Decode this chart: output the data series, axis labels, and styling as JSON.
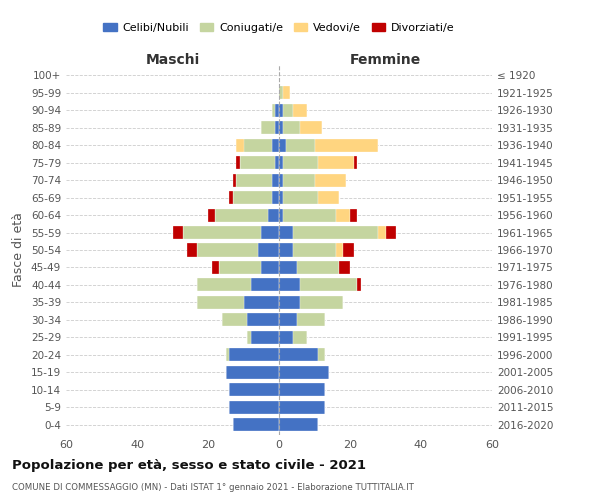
{
  "age_groups": [
    "0-4",
    "5-9",
    "10-14",
    "15-19",
    "20-24",
    "25-29",
    "30-34",
    "35-39",
    "40-44",
    "45-49",
    "50-54",
    "55-59",
    "60-64",
    "65-69",
    "70-74",
    "75-79",
    "80-84",
    "85-89",
    "90-94",
    "95-99",
    "100+"
  ],
  "birth_years": [
    "2016-2020",
    "2011-2015",
    "2006-2010",
    "2001-2005",
    "1996-2000",
    "1991-1995",
    "1986-1990",
    "1981-1985",
    "1976-1980",
    "1971-1975",
    "1966-1970",
    "1961-1965",
    "1956-1960",
    "1951-1955",
    "1946-1950",
    "1941-1945",
    "1936-1940",
    "1931-1935",
    "1926-1930",
    "1921-1925",
    "≤ 1920"
  ],
  "colors": {
    "celibi": "#4472C4",
    "coniugati": "#C5D5A0",
    "vedovi": "#FFD580",
    "divorziati": "#C00000"
  },
  "males": {
    "celibi": [
      13,
      14,
      14,
      15,
      14,
      8,
      9,
      10,
      8,
      5,
      6,
      5,
      3,
      2,
      2,
      1,
      2,
      1,
      1,
      0,
      0
    ],
    "coniugati": [
      0,
      0,
      0,
      0,
      1,
      1,
      7,
      13,
      15,
      12,
      17,
      22,
      15,
      11,
      10,
      10,
      8,
      4,
      1,
      0,
      0
    ],
    "vedovi": [
      0,
      0,
      0,
      0,
      0,
      0,
      0,
      0,
      0,
      0,
      0,
      0,
      0,
      0,
      0,
      0,
      2,
      0,
      0,
      0,
      0
    ],
    "divorziati": [
      0,
      0,
      0,
      0,
      0,
      0,
      0,
      0,
      0,
      2,
      3,
      3,
      2,
      1,
      1,
      1,
      0,
      0,
      0,
      0,
      0
    ]
  },
  "females": {
    "celibi": [
      11,
      13,
      13,
      14,
      11,
      4,
      5,
      6,
      6,
      5,
      4,
      4,
      1,
      1,
      1,
      1,
      2,
      1,
      1,
      0,
      0
    ],
    "coniugati": [
      0,
      0,
      0,
      0,
      2,
      4,
      8,
      12,
      16,
      12,
      12,
      24,
      15,
      10,
      9,
      10,
      8,
      5,
      3,
      1,
      0
    ],
    "vedovi": [
      0,
      0,
      0,
      0,
      0,
      0,
      0,
      0,
      0,
      0,
      2,
      2,
      4,
      6,
      9,
      10,
      18,
      6,
      4,
      2,
      0
    ],
    "divorziati": [
      0,
      0,
      0,
      0,
      0,
      0,
      0,
      0,
      1,
      3,
      3,
      3,
      2,
      0,
      0,
      1,
      0,
      0,
      0,
      0,
      0
    ]
  },
  "title": "Popolazione per età, sesso e stato civile - 2021",
  "subtitle": "COMUNE DI COMMESSAGGIO (MN) - Dati ISTAT 1° gennaio 2021 - Elaborazione TUTTITALIA.IT",
  "xlabel_left": "Maschi",
  "xlabel_right": "Femmine",
  "ylabel": "Fasce di età",
  "xlim": 60,
  "legend_labels": [
    "Celibi/Nubili",
    "Coniugati/e",
    "Vedovi/e",
    "Divorziati/e"
  ],
  "background_color": "#ffffff"
}
